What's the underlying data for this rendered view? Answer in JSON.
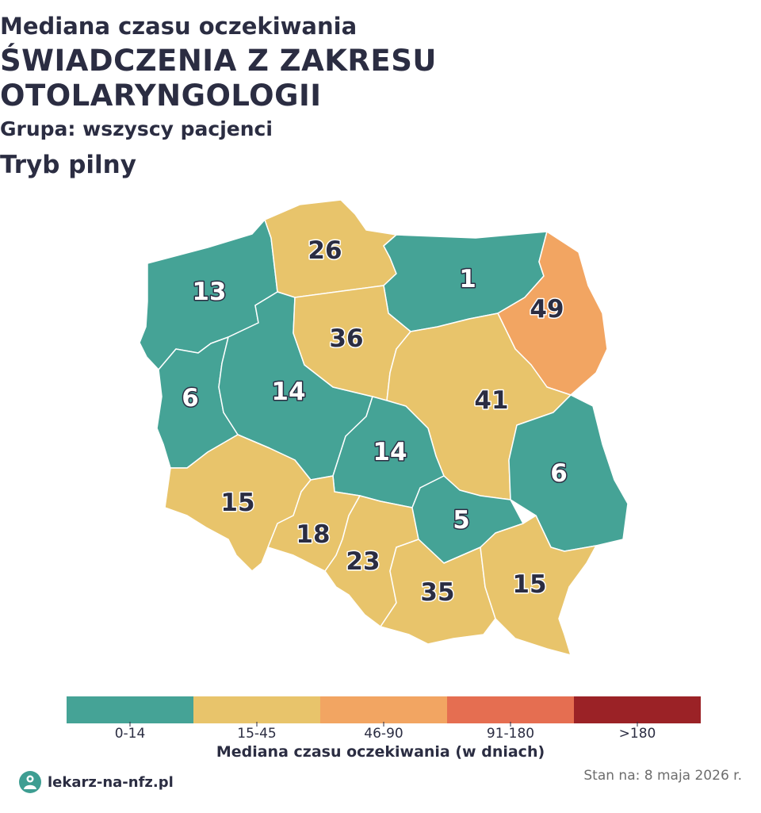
{
  "header": {
    "line1": "Mediana czasu oczekiwania",
    "line2a": "ŚWIADCZENIA Z ZAKRESU",
    "line2b": "OTOLARYNGOLOGII",
    "group": "Grupa: wszyscy pacjenci",
    "mode": "Tryb pilny"
  },
  "colors": {
    "bin_0_14": "#45a396",
    "bin_15_45": "#e8c46b",
    "bin_46_90": "#f2a562",
    "bin_91_180": "#e56e51",
    "bin_over_180": "#9b2226"
  },
  "regions": [
    {
      "id": "zachodniopomorskie",
      "value": "13",
      "bin": "bin_0_14"
    },
    {
      "id": "pomorskie",
      "value": "26",
      "bin": "bin_15_45"
    },
    {
      "id": "warminsko-mazurskie",
      "value": "1",
      "bin": "bin_0_14"
    },
    {
      "id": "podlaskie",
      "value": "49",
      "bin": "bin_46_90"
    },
    {
      "id": "lubuskie",
      "value": "6",
      "bin": "bin_0_14"
    },
    {
      "id": "wielkopolskie",
      "value": "14",
      "bin": "bin_0_14"
    },
    {
      "id": "kujawsko-pomorskie",
      "value": "36",
      "bin": "bin_15_45"
    },
    {
      "id": "mazowieckie",
      "value": "41",
      "bin": "bin_15_45"
    },
    {
      "id": "lodzkie",
      "value": "14",
      "bin": "bin_0_14"
    },
    {
      "id": "lubelskie",
      "value": "6",
      "bin": "bin_0_14"
    },
    {
      "id": "dolnoslaskie",
      "value": "15",
      "bin": "bin_15_45"
    },
    {
      "id": "opolskie",
      "value": "18",
      "bin": "bin_15_45"
    },
    {
      "id": "slaskie",
      "value": "23",
      "bin": "bin_15_45"
    },
    {
      "id": "swietokrzyskie",
      "value": "5",
      "bin": "bin_0_14"
    },
    {
      "id": "malopolskie",
      "value": "35",
      "bin": "bin_15_45"
    },
    {
      "id": "podkarpackie",
      "value": "15",
      "bin": "bin_15_45"
    }
  ],
  "legend": {
    "bins": [
      "0-14",
      "15-45",
      "46-90",
      "91-180",
      ">180"
    ],
    "title": "Mediana czasu oczekiwania (w dniach)"
  },
  "footer": {
    "brand": "lekarz-na-nfz.pl",
    "as_of": "Stan na: 8 maja 2026 r."
  }
}
